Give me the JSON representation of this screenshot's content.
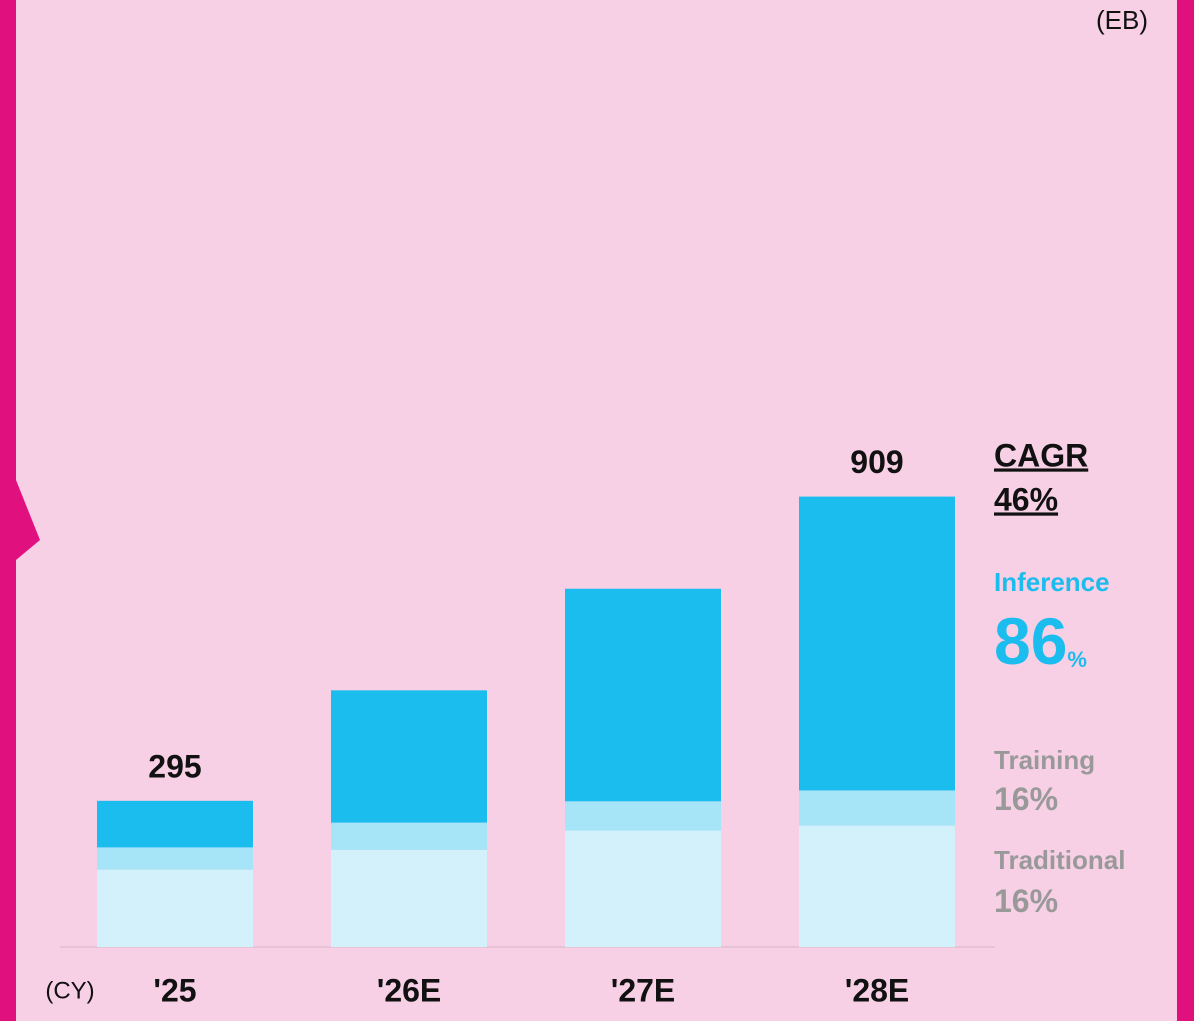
{
  "chart_data": {
    "type": "bar",
    "stacked": true,
    "unit_label": "(EB)",
    "x_label": "(CY)",
    "categories": [
      "'25",
      "'26E",
      "'27E",
      "'28E"
    ],
    "series": [
      {
        "name": "Traditional",
        "color": "#d3f1fa",
        "values": [
          156,
          196,
          235,
          245
        ],
        "cagr": 16,
        "cagr_unit": "%"
      },
      {
        "name": "Training",
        "color": "#a6e5f7",
        "values": [
          45,
          55,
          59,
          71
        ],
        "cagr": 16,
        "cagr_unit": "%"
      },
      {
        "name": "Inference",
        "color": "#1bbcee",
        "values": [
          94,
          267,
          429,
          593
        ],
        "cagr": 86,
        "cagr_unit": "%"
      }
    ],
    "total_labels": [
      "295",
      null,
      null,
      "909"
    ],
    "cagr_title": "CAGR",
    "cagr_total": "46%"
  }
}
